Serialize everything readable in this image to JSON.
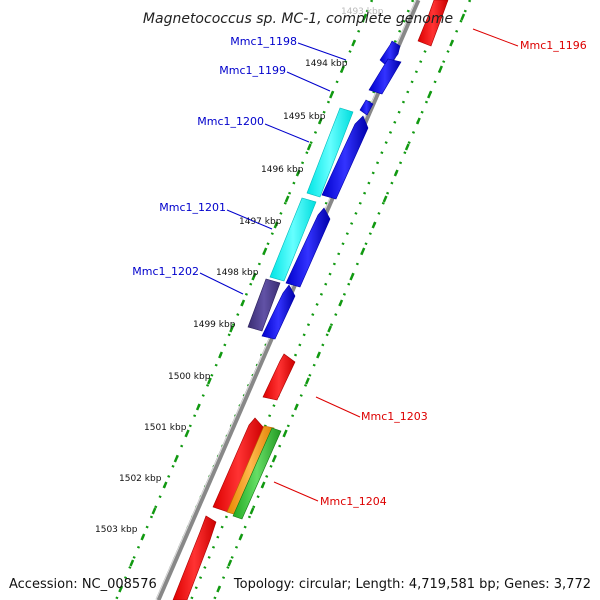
{
  "title": "Magnetococcus sp. MC-1, complete genome",
  "footer": {
    "accession": "Accession: NC_008576",
    "topology": "Topology: circular; Length: 4,719,581 bp; Genes: 3,772"
  },
  "ticks": [
    "1493 kbp",
    "1494 kbp",
    "1495 kbp",
    "1496 kbp",
    "1497 kbp",
    "1498 kbp",
    "1499 kbp",
    "1500 kbp",
    "1501 kbp",
    "1502 kbp",
    "1503 kbp"
  ],
  "gene_labels": {
    "left": [
      "Mmc1_1198",
      "Mmc1_1199",
      "Mmc1_1200",
      "Mmc1_1201",
      "Mmc1_1202"
    ],
    "right": [
      "Mmc1_1196",
      "Mmc1_1203",
      "Mmc1_1204"
    ]
  },
  "colors": {
    "forward_strand": "#0000ee",
    "reverse_strand": "#ff0000",
    "cyan_feature": "#00ffff",
    "purple_feature": "#4b3a8c",
    "orange_feature": "#ff9900",
    "green_feature": "#33cc33",
    "backbone": "#888888",
    "dotted_guides": "#119911",
    "left_label": "#0000cc",
    "right_label": "#dd0000"
  }
}
